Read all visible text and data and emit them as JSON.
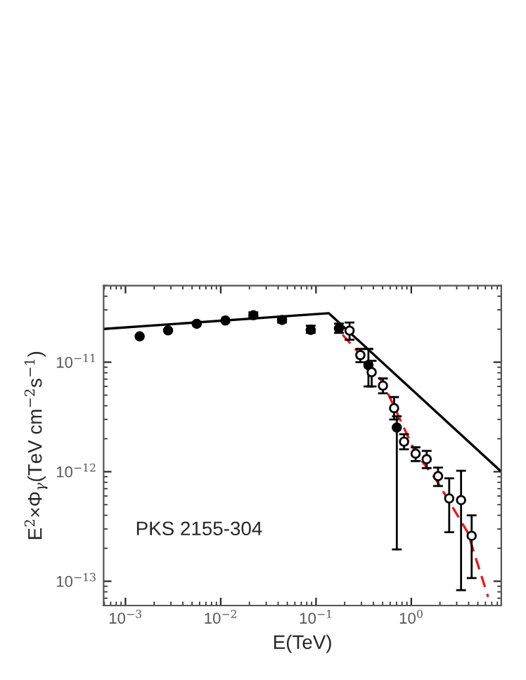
{
  "chart_data": {
    "type": "scatter",
    "xlabel": "E(TeV)",
    "ylabel": "E$^{2}$×Φ$_{γ}$(TeV cm$^{−2}$s$^{−1}$)",
    "annotations": [
      "PKS 2155-304"
    ],
    "log": "xy",
    "grid": false,
    "xlim": [
      0.00059,
      8.8
    ],
    "ylim": [
      6e-14,
      5e-11
    ],
    "xticks": [
      {
        "value": 0.001,
        "label": "10$^{−3}$"
      },
      {
        "value": 0.01,
        "label": "10$^{−2}$"
      },
      {
        "value": 0.1,
        "label": "10$^{−1}$"
      },
      {
        "value": 1,
        "label": "10$^{0}$"
      }
    ],
    "yticks": [
      {
        "value": 1e-13,
        "label": "10$^{−13}$"
      },
      {
        "value": 1e-12,
        "label": "10$^{−12}$"
      },
      {
        "value": 1e-11,
        "label": "10$^{−11}$"
      }
    ],
    "series": [
      {
        "type": "line",
        "color": "#000000",
        "line_style": "solid",
        "marker": "none",
        "x": [
          0.00059,
          0.136,
          8.8
        ],
        "values": [
          2.01e-11,
          2.8e-11,
          1e-12
        ]
      },
      {
        "type": "line",
        "color": "#e8191e",
        "line_style": "dashed",
        "marker": "none",
        "x": [
          0.19,
          0.37,
          0.504,
          1.1,
          1.83,
          3.9,
          6.4
        ],
        "values": [
          1.78e-11,
          9.3e-12,
          6.5e-12,
          1.51e-12,
          8.4e-13,
          2.8e-13,
          7.2e-14
        ]
      },
      {
        "color": "#000000",
        "marker": "circle",
        "x": [
          0.00141,
          0.0028,
          0.0056,
          0.0112,
          0.022,
          0.044,
          0.088,
          0.174,
          0.355,
          0.705
        ],
        "values": [
          1.72e-11,
          1.95e-11,
          2.24e-11,
          2.4e-11,
          2.68e-11,
          2.43e-11,
          1.97e-11,
          2.03e-11,
          9.4e-12,
          2.53e-12
        ],
        "errors": [
          null,
          null,
          null,
          null,
          [
            2.55e-11,
            2.85e-11
          ],
          [
            2.3e-11,
            2.6e-11
          ],
          [
            1.85e-11,
            2.15e-11
          ],
          [
            1.85e-11,
            2.25e-11
          ],
          [
            6e-12,
            1.32e-11
          ],
          [
            1.95e-13,
            3.2e-12
          ]
        ]
      },
      {
        "color": "#ffffff",
        "marker": "circle",
        "x": [
          0.225,
          0.292,
          0.384,
          0.504,
          0.66,
          0.84,
          1.11,
          1.45,
          1.91,
          2.5,
          3.33,
          4.3
        ],
        "values": [
          1.94e-11,
          1.16e-11,
          8.1e-12,
          6.1e-12,
          3.8e-12,
          1.88e-12,
          1.46e-12,
          1.3e-12,
          9.1e-13,
          5.7e-13,
          5.5e-13,
          2.6e-13
        ],
        "errors": [
          [
            1.6e-11,
            2.3e-11
          ],
          [
            1e-11,
            1.32e-11
          ],
          [
            6e-12,
            1.03e-11
          ],
          [
            5.2e-12,
            7.1e-12
          ],
          [
            3e-12,
            4.8e-12
          ],
          [
            1.6e-12,
            2.2e-12
          ],
          [
            1.25e-12,
            1.67e-12
          ],
          [
            1.08e-12,
            1.55e-12
          ],
          [
            7.4e-13,
            1.09e-12
          ],
          [
            2.8e-13,
            8.7e-13
          ],
          [
            8.3e-14,
            1.02e-12
          ],
          [
            1.07e-13,
            4e-13
          ]
        ]
      }
    ]
  }
}
